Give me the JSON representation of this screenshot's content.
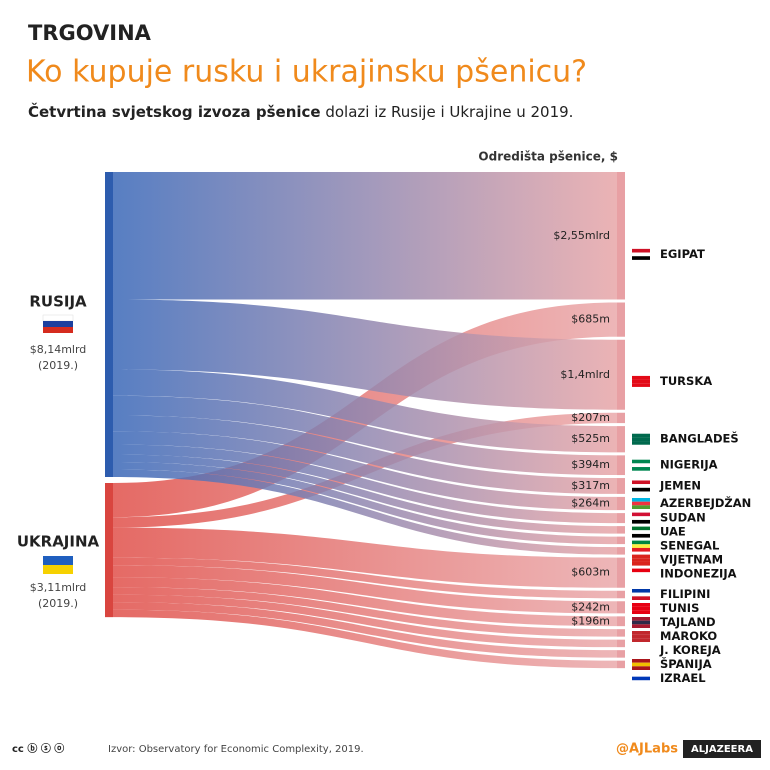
{
  "header": {
    "kicker": "TRGOVINA",
    "title": "Ko kupuje rusku i ukrajinsku pšenicu?",
    "subtitle_bold": "Četvrtina svjetskog izvoza pšenice",
    "subtitle_rest": "dolazi iz Rusije i Ukrajine u 2019."
  },
  "chart_data": {
    "type": "sankey",
    "axis_title": "Odredišta pšenice, $",
    "sources": [
      {
        "name": "RUSIJA",
        "value": 8140,
        "value_label": "$8,14mlrd",
        "year": "(2019.)",
        "color": "#2d5cae"
      },
      {
        "name": "UKRAJINA",
        "value": 3110,
        "value_label": "$3,11mlrd",
        "year": "(2019.)",
        "color": "#d9453f"
      }
    ],
    "destinations": [
      "EGIPAT",
      "TURSKA",
      "BANGLADEŠ",
      "NIGERIJA",
      "JEMEN",
      "AZERBEJDŽAN",
      "SUDAN",
      "UAE",
      "SENEGAL",
      "VIJETNAM",
      "INDONEZIJA",
      "FILIPINI",
      "TUNIS",
      "TAJLAND",
      "MAROKO",
      "J. KOREJA",
      "ŠPANIJA",
      "IZRAEL"
    ],
    "destination_color": "#e8a0a4",
    "flows": [
      {
        "from": 0,
        "to": 0,
        "value": 2550,
        "value_label": "$2,55mlrd"
      },
      {
        "from": 1,
        "to": 0,
        "value": 685,
        "value_label": "$685m"
      },
      {
        "from": 0,
        "to": 1,
        "value": 1400,
        "value_label": "$1,4mlrd"
      },
      {
        "from": 1,
        "to": 1,
        "value": 207,
        "value_label": "$207m"
      },
      {
        "from": 0,
        "to": 2,
        "value": 525,
        "value_label": "$525m"
      },
      {
        "from": 0,
        "to": 3,
        "value": 394,
        "value_label": "$394m"
      },
      {
        "from": 0,
        "to": 4,
        "value": 317,
        "value_label": "$317m"
      },
      {
        "from": 0,
        "to": 5,
        "value": 264,
        "value_label": "$264m"
      },
      {
        "from": 0,
        "to": 6,
        "value": 200
      },
      {
        "from": 0,
        "to": 7,
        "value": 150
      },
      {
        "from": 0,
        "to": 8,
        "value": 150
      },
      {
        "from": 0,
        "to": 9,
        "value": 150
      },
      {
        "from": 1,
        "to": 10,
        "value": 603,
        "value_label": "$603m"
      },
      {
        "from": 1,
        "to": 11,
        "value": 150
      },
      {
        "from": 1,
        "to": 12,
        "value": 242,
        "value_label": "$242m"
      },
      {
        "from": 1,
        "to": 13,
        "value": 196,
        "value_label": "$196m"
      },
      {
        "from": 1,
        "to": 14,
        "value": 150
      },
      {
        "from": 1,
        "to": 15,
        "value": 150
      },
      {
        "from": 1,
        "to": 16,
        "value": 150
      },
      {
        "from": 1,
        "to": 17,
        "value": 150
      }
    ]
  },
  "footer": {
    "source": "Izvor: Observatory for Economic Complexity, 2019.",
    "handle": "@AJLabs",
    "brand": "ALJAZEERA"
  }
}
